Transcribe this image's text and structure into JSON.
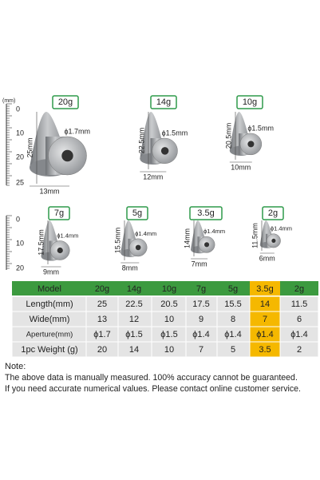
{
  "rulers": [
    {
      "unit": "(mm)",
      "ticks": [
        "0",
        "10",
        "20",
        "25"
      ]
    },
    {
      "ticks": [
        "0",
        "10",
        "20"
      ]
    }
  ],
  "products": [
    {
      "weight": "20g",
      "height": "25mm",
      "width": "13mm",
      "aperture": "ϕ1.7mm"
    },
    {
      "weight": "14g",
      "height": "22.5mm",
      "width": "12mm",
      "aperture": "ϕ1.5mm"
    },
    {
      "weight": "10g",
      "height": "20.5mm",
      "width": "10mm",
      "aperture": "ϕ1.5mm"
    },
    {
      "weight": "7g",
      "height": "17.5mm",
      "width": "9mm",
      "aperture": "ϕ1.4mm"
    },
    {
      "weight": "5g",
      "height": "15.5mm",
      "width": "8mm",
      "aperture": "ϕ1.4mm"
    },
    {
      "weight": "3.5g",
      "height": "14mm",
      "width": "7mm",
      "aperture": "ϕ1.4mm"
    },
    {
      "weight": "2g",
      "height": "11.5mm",
      "width": "6mm",
      "aperture": "ϕ1.4mm"
    }
  ],
  "table": {
    "header": [
      "Model",
      "20g",
      "14g",
      "10g",
      "7g",
      "5g",
      "3.5g",
      "2g"
    ],
    "rows": [
      [
        "Length(mm)",
        "25",
        "22.5",
        "20.5",
        "17.5",
        "15.5",
        "14",
        "11.5"
      ],
      [
        "Wide(mm)",
        "13",
        "12",
        "10",
        "9",
        "8",
        "7",
        "6"
      ],
      [
        "Aperture(mm)",
        "ϕ1.7",
        "ϕ1.5",
        "ϕ1.5",
        "ϕ1.4",
        "ϕ1.4",
        "ϕ1.4",
        "ϕ1.4"
      ],
      [
        "1pc Weight (g)",
        "20",
        "14",
        "10",
        "7",
        "5",
        "3.5",
        "2"
      ]
    ]
  },
  "note": {
    "title": "Note:",
    "lines": [
      "The above data is manually measured. 100% accuracy cannot be guaranteed.",
      "If you need accurate numerical values. Please contact online customer service."
    ]
  }
}
